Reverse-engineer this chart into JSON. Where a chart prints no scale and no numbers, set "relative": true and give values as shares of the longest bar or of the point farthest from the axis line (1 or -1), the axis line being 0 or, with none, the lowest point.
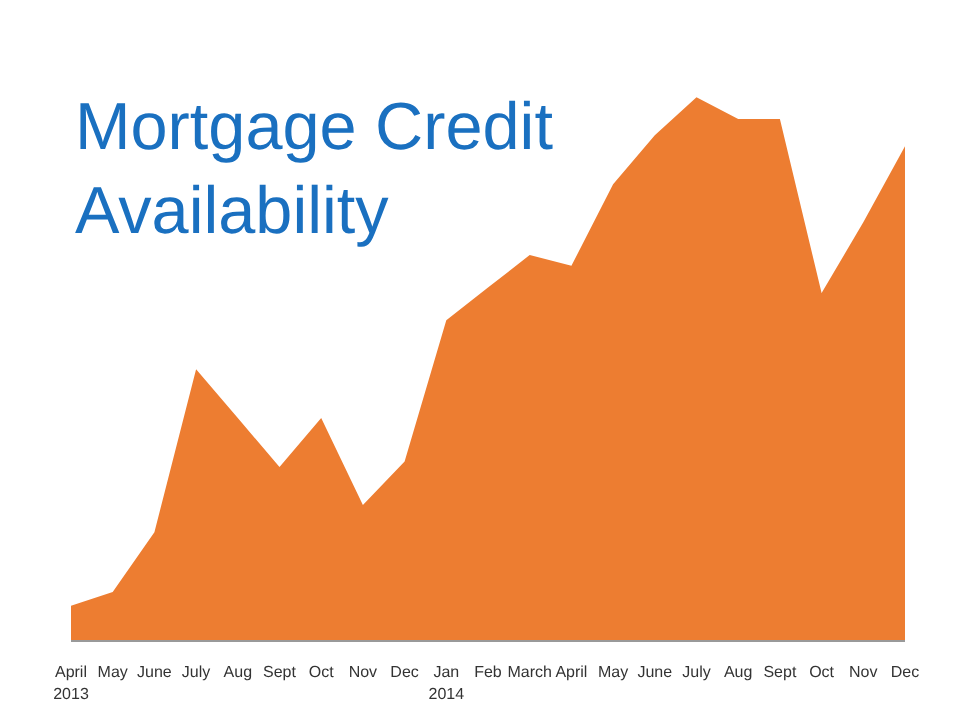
{
  "chart_data": {
    "type": "area",
    "title": "Mortgage Credit Availability",
    "relative": true,
    "categories": [
      "April\n2013",
      "May",
      "June",
      "July",
      "Aug",
      "Sept",
      "Oct",
      "Nov",
      "Dec",
      "Jan\n2014",
      "Feb",
      "March",
      "April",
      "May",
      "June",
      "July",
      "Aug",
      "Sept",
      "Oct",
      "Nov",
      "Dec"
    ],
    "series": [
      {
        "color": "#ed7d31",
        "values": [
          0.065,
          0.09,
          0.2,
          0.5,
          0.41,
          0.32,
          0.41,
          0.25,
          0.33,
          0.59,
          0.65,
          0.71,
          0.69,
          0.84,
          0.93,
          1,
          0.96,
          0.96,
          0.64,
          0.77,
          0.91
        ]
      }
    ],
    "grid": false
  }
}
